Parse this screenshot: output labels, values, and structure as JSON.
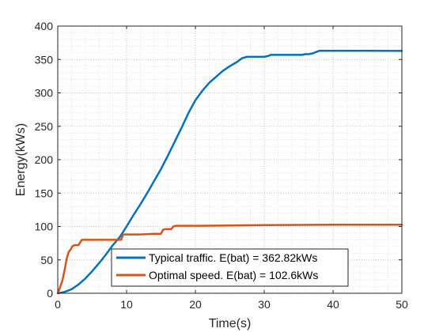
{
  "chart_data": {
    "type": "line",
    "title": "",
    "xlabel": "Time(s)",
    "ylabel": "Energy(kWs)",
    "xlim": [
      0,
      50
    ],
    "ylim": [
      0,
      400
    ],
    "xticks": [
      0,
      10,
      20,
      30,
      40,
      50
    ],
    "yticks": [
      0,
      50,
      100,
      150,
      200,
      250,
      300,
      350,
      400
    ],
    "grid": "on (major and minor, dotted)",
    "legend_placement": "bottom-center",
    "series": [
      {
        "name": "Typical traffic. E(bat) = 362.82kWs",
        "color": "#0072BD",
        "x": [
          0,
          1,
          2,
          3,
          4,
          5,
          6,
          7,
          8,
          9,
          10,
          11,
          12,
          13,
          14,
          15,
          16,
          17,
          18,
          19,
          20,
          21,
          22,
          23,
          24,
          25,
          26,
          26.8,
          27.5,
          28,
          30,
          30.5,
          31,
          32,
          34,
          35.5,
          36,
          36.5,
          37,
          37.5,
          38,
          40,
          45,
          50
        ],
        "y": [
          0,
          2,
          6,
          13,
          22,
          33,
          45,
          58,
          72,
          84,
          100,
          117,
          133,
          150,
          168,
          186,
          206,
          227,
          248,
          270,
          289,
          303,
          315,
          324,
          333,
          340,
          346,
          352,
          354,
          354,
          354,
          355,
          357,
          357,
          357,
          357,
          358,
          358,
          359,
          361,
          363,
          363,
          363,
          362.82
        ]
      },
      {
        "name": "Optimal speed. E(bat) = 102.6kWs",
        "color": "#D95319",
        "x": [
          0,
          0.3,
          0.7,
          1,
          1.3,
          1.6,
          1.9,
          2.1,
          2.4,
          2.7,
          3,
          3.5,
          4,
          6,
          8,
          9.2,
          9.5,
          10,
          12,
          14,
          15,
          15.3,
          15.6,
          16.5,
          16.8,
          17.2,
          20,
          30,
          40,
          50
        ],
        "y": [
          0,
          8,
          20,
          35,
          52,
          62,
          66,
          70,
          72,
          72,
          72,
          80,
          80,
          80,
          80,
          80,
          88,
          88,
          88,
          89,
          89,
          95,
          96,
          96,
          100,
          101,
          101,
          102,
          102.6,
          102.6
        ]
      }
    ]
  }
}
